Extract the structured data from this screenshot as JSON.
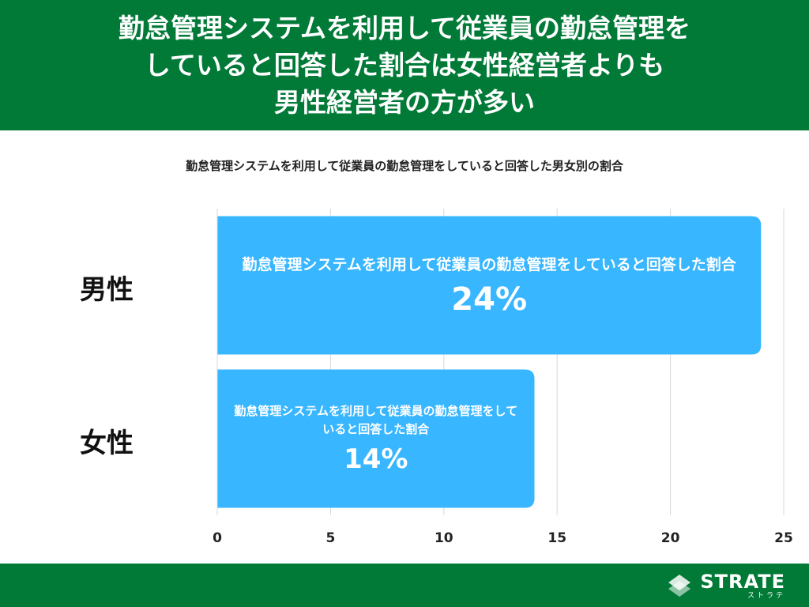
{
  "header": {
    "lines": [
      "勤怠管理システムを利用して従業員の勤怠管理を",
      "していると回答した割合は女性経営者よりも",
      "男性経営者の方が多い"
    ]
  },
  "footer": {
    "logo_text": "STRATE",
    "logo_sub": "ストラテ"
  },
  "colors": {
    "header_bg": "#017a37",
    "bar": "#38b6ff",
    "grid": "#d9d9d9"
  },
  "chart_data": {
    "type": "bar",
    "orientation": "horizontal",
    "title": "勤怠管理システムを利用して従業員の勤怠管理をしていると回答した男女別の割合",
    "categories": [
      "男性",
      "女性"
    ],
    "values": [
      24,
      14
    ],
    "bar_labels": [
      {
        "desc": "勤怠管理システムを利用して従業員の勤怠管理をしていると回答した割合",
        "value": "24%"
      },
      {
        "desc": "勤怠管理システムを利用して従業員の勤怠管理をしていると回答した割合",
        "value": "14%"
      }
    ],
    "xlim": [
      0,
      25
    ],
    "xticks": [
      0,
      5,
      10,
      15,
      20,
      25
    ],
    "grid": true,
    "legend": "none"
  }
}
